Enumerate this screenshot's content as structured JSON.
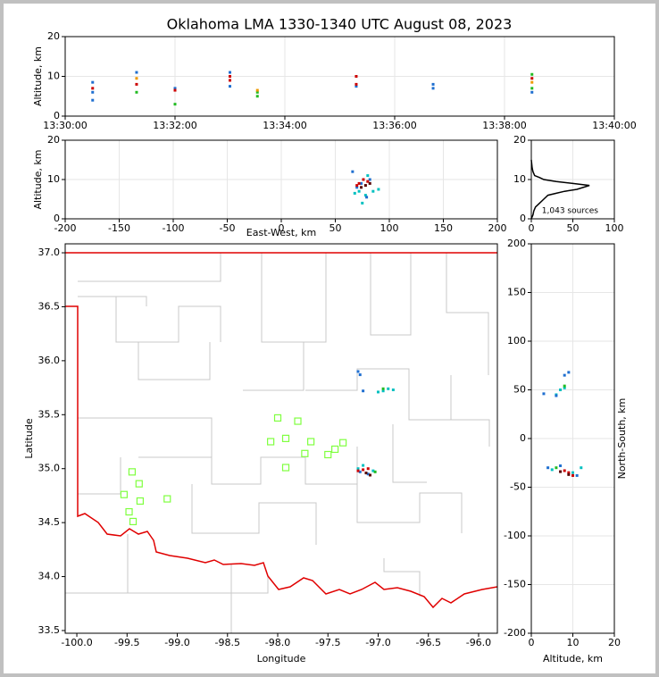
{
  "chart_data": [
    {
      "type": "scatter",
      "title": "Oklahoma LMA 1330-1340 UTC August 08, 2023",
      "ylabel": "Altitude, km",
      "xlim": [
        0,
        10
      ],
      "xticks": [
        {
          "value": 0,
          "label": "13:30:00"
        },
        {
          "value": 2,
          "label": "13:32:00"
        },
        {
          "value": 4,
          "label": "13:34:00"
        },
        {
          "value": 6,
          "label": "13:36:00"
        },
        {
          "value": 8,
          "label": "13:38:00"
        },
        {
          "value": 10,
          "label": "13:40:00"
        }
      ],
      "ylim": [
        0,
        20
      ],
      "yticks": [
        0,
        10,
        20
      ],
      "grid": true,
      "series": [
        {
          "color": "#1f6fd0",
          "x": [
            0.5,
            0.5,
            0.5,
            2.0,
            3.0,
            3.0,
            5.3,
            6.7,
            6.7,
            8.5,
            1.3
          ],
          "values": [
            4,
            6,
            8.5,
            7,
            7.5,
            11,
            7.5,
            8,
            7,
            6,
            11
          ]
        },
        {
          "color": "#cc0000",
          "x": [
            0.5,
            1.3,
            2.0,
            3.0,
            3.0,
            5.3,
            5.3,
            8.5
          ],
          "values": [
            7,
            8,
            6.5,
            9,
            10,
            10,
            8,
            9.5
          ]
        },
        {
          "color": "#22bb22",
          "x": [
            1.3,
            2.0,
            3.5,
            8.5,
            8.5,
            3.5
          ],
          "values": [
            6,
            3,
            5,
            7,
            10.5,
            6
          ]
        },
        {
          "color": "#ee9900",
          "x": [
            1.3,
            3.5,
            8.5
          ],
          "values": [
            9.5,
            6.5,
            8.5
          ]
        }
      ]
    },
    {
      "type": "scatter",
      "ylabel": "Altitude, km",
      "xlabel": "East-West, km",
      "xlim": [
        -200,
        200
      ],
      "xticks": [
        -200,
        -150,
        -100,
        -50,
        0,
        50,
        100,
        150,
        200
      ],
      "ylim": [
        0,
        20
      ],
      "yticks": [
        0,
        10,
        20
      ],
      "grid": true,
      "series": [
        {
          "color": "#00c0c0",
          "x": [
            68,
            72,
            78,
            85,
            90,
            75,
            80
          ],
          "values": [
            6.5,
            7,
            6,
            7,
            7.5,
            4,
            11
          ]
        },
        {
          "color": "#1f6fd0",
          "x": [
            70,
            74,
            82,
            66,
            79
          ],
          "values": [
            8,
            9,
            10,
            12,
            5.5
          ]
        },
        {
          "color": "#cc0000",
          "x": [
            72,
            76,
            80,
            70
          ],
          "values": [
            9,
            10,
            9.5,
            8.5
          ]
        },
        {
          "color": "#550000",
          "x": [
            74,
            78,
            82
          ],
          "values": [
            8,
            8.5,
            9
          ]
        }
      ]
    },
    {
      "type": "line",
      "annotation": "1,043 sources",
      "xlim": [
        0,
        100
      ],
      "xticks": [
        0,
        50,
        100
      ],
      "ylim": [
        0,
        20
      ],
      "yticks": [
        0,
        10,
        20
      ],
      "grid": true,
      "series": [
        {
          "color": "#000000",
          "x": [
            0,
            2,
            3,
            5,
            10,
            15,
            20,
            30,
            40,
            55,
            70,
            50,
            30,
            15,
            10,
            4,
            2,
            1,
            0
          ],
          "values": [
            0,
            1,
            2,
            3,
            4,
            5,
            6,
            6.5,
            7,
            7.5,
            8.5,
            9,
            9.5,
            10,
            10.5,
            11,
            12,
            13,
            15
          ]
        }
      ]
    },
    {
      "type": "map",
      "xlabel": "Longitude",
      "ylabel": "Latitude",
      "xlim": [
        -100.116,
        -95.813
      ],
      "xticks": [
        {
          "value": -100.0,
          "label": "-100.0"
        },
        -99.5,
        {
          "value": -99.0,
          "label": "-99.0"
        },
        -98.5,
        {
          "value": -98.0,
          "label": "-98.0"
        },
        -97.5,
        {
          "value": -97.0,
          "label": "-97.0"
        },
        -96.5,
        {
          "value": -96.0,
          "label": "-96.0"
        }
      ],
      "ylim": [
        33.475,
        37.083
      ],
      "yticks": [
        33.5,
        {
          "value": 34.0,
          "label": "34.0"
        },
        34.5,
        {
          "value": 35.0,
          "label": "35.0"
        },
        35.5,
        {
          "value": 36.0,
          "label": "36.0"
        },
        36.5,
        {
          "value": 37.0,
          "label": "37.0"
        }
      ],
      "series": [
        {
          "color": "#7fff3f",
          "marker": "square-open",
          "x": [
            -98.0,
            -97.8,
            -98.07,
            -97.92,
            -97.67,
            -97.35,
            -97.43,
            -97.73,
            -97.5,
            -97.92,
            -99.45,
            -99.38,
            -99.53,
            -99.37,
            -99.1,
            -99.48,
            -99.44
          ],
          "values": [
            35.47,
            35.44,
            35.25,
            35.28,
            35.25,
            35.24,
            35.18,
            35.14,
            35.13,
            35.01,
            34.97,
            34.86,
            34.76,
            34.7,
            34.72,
            34.6,
            34.51
          ]
        },
        {
          "color": "#00c0c0",
          "x": [
            -97.2,
            -97.05,
            -97.15,
            -96.95,
            -96.9,
            -97.0,
            -96.85
          ],
          "values": [
            35.0,
            34.98,
            35.03,
            35.72,
            35.74,
            35.71,
            35.73
          ]
        },
        {
          "color": "#1f6fd0",
          "x": [
            -97.1,
            -97.18,
            -97.18,
            -97.2,
            -97.15
          ],
          "values": [
            34.95,
            34.97,
            35.87,
            35.9,
            35.72
          ]
        },
        {
          "color": "#cc0000",
          "x": [
            -97.15,
            -97.1,
            -97.2
          ],
          "values": [
            34.99,
            35.0,
            34.98
          ]
        },
        {
          "color": "#550000",
          "x": [
            -97.12,
            -97.08
          ],
          "values": [
            34.96,
            34.94
          ]
        },
        {
          "color": "#22bb22",
          "x": [
            -97.03,
            -96.95
          ],
          "values": [
            34.97,
            35.74
          ]
        }
      ]
    },
    {
      "type": "scatter",
      "xlabel": "Altitude, km",
      "ylabel": "North-South, km",
      "xlim": [
        0,
        20
      ],
      "xticks": [
        0,
        10,
        20
      ],
      "ylim": [
        -200,
        200
      ],
      "yticks": [
        -200,
        -150,
        -100,
        -50,
        0,
        50,
        100,
        150,
        200
      ],
      "grid": true,
      "series": [
        {
          "color": "#00c0c0",
          "x": [
            7,
            6,
            8,
            10,
            12,
            5
          ],
          "values": [
            50,
            45,
            52,
            -35,
            -30,
            -32
          ]
        },
        {
          "color": "#1f6fd0",
          "x": [
            8,
            9,
            7,
            11,
            4,
            6,
            3
          ],
          "values": [
            65,
            68,
            -28,
            -38,
            -30,
            44,
            46
          ]
        },
        {
          "color": "#cc0000",
          "x": [
            9,
            8,
            10
          ],
          "values": [
            -35,
            -33,
            -38
          ]
        },
        {
          "color": "#550000",
          "x": [
            9,
            7
          ],
          "values": [
            -37,
            -34
          ]
        },
        {
          "color": "#22bb22",
          "x": [
            6,
            8
          ],
          "values": [
            -30,
            54
          ]
        }
      ]
    }
  ]
}
